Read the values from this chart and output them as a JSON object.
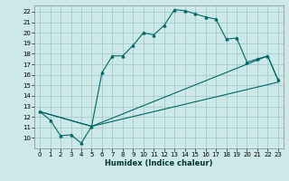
{
  "xlabel": "Humidex (Indice chaleur)",
  "bg_color": "#cce8e8",
  "grid_color": "#aacece",
  "line_color": "#006666",
  "xlim": [
    -0.5,
    23.5
  ],
  "ylim": [
    9,
    22.6
  ],
  "yticks": [
    10,
    11,
    12,
    13,
    14,
    15,
    16,
    17,
    18,
    19,
    20,
    21,
    22
  ],
  "xticks": [
    0,
    1,
    2,
    3,
    4,
    5,
    6,
    7,
    8,
    9,
    10,
    11,
    12,
    13,
    14,
    15,
    16,
    17,
    18,
    19,
    20,
    21,
    22,
    23
  ],
  "curve1_x": [
    0,
    1,
    2,
    3,
    4,
    5,
    6,
    7,
    8,
    9,
    10,
    11,
    12,
    13,
    14,
    15,
    16,
    17,
    18,
    19,
    20,
    21,
    22,
    23
  ],
  "curve1_y": [
    12.5,
    11.7,
    10.2,
    10.3,
    9.5,
    11.1,
    16.2,
    17.8,
    17.8,
    18.8,
    20.0,
    19.8,
    20.7,
    22.2,
    22.1,
    21.8,
    21.5,
    21.3,
    19.4,
    19.5,
    17.2,
    17.5,
    17.8,
    15.5
  ],
  "curve2_x": [
    0,
    5,
    22,
    23
  ],
  "curve2_y": [
    12.5,
    11.1,
    17.8,
    15.5
  ],
  "curve3_x": [
    0,
    5,
    23
  ],
  "curve3_y": [
    12.5,
    11.1,
    15.3
  ],
  "sub_line_x": [
    0,
    23
  ],
  "sub_line_y": [
    12.5,
    15.3
  ]
}
